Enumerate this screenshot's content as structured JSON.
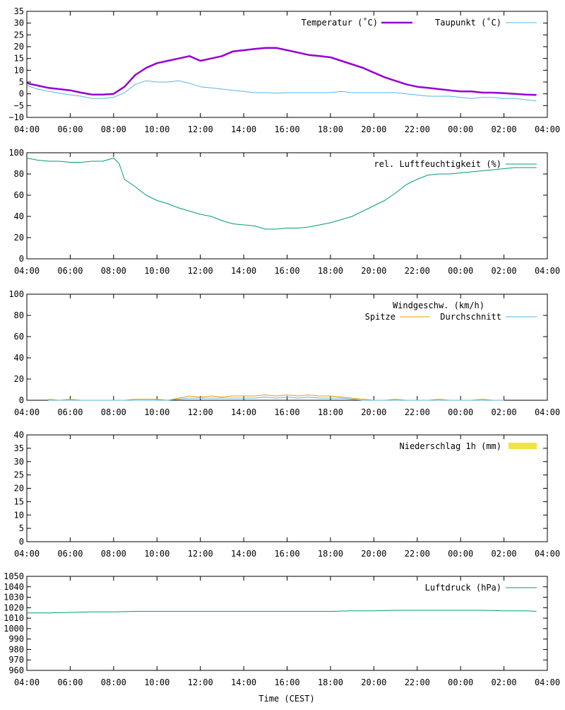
{
  "x_axis_title": "Time (CEST)",
  "chart_data": [
    {
      "type": "line",
      "title": "",
      "xlabel": "",
      "ylabel": "",
      "x_tick_labels": [
        "04:00",
        "06:00",
        "08:00",
        "10:00",
        "12:00",
        "14:00",
        "16:00",
        "18:00",
        "20:00",
        "22:00",
        "00:00",
        "02:00",
        "04:00"
      ],
      "xlim": [
        0,
        24
      ],
      "ylim": [
        -10,
        35
      ],
      "y_ticks": [
        -10,
        -5,
        0,
        5,
        10,
        15,
        20,
        25,
        30,
        35
      ],
      "y_tick_labels": [
        "−10",
        "−5",
        "0",
        "5",
        "10",
        "15",
        "20",
        "25",
        "30",
        "35"
      ],
      "grid": false,
      "legend": "top-right",
      "x": [
        0,
        0.5,
        1,
        1.5,
        2,
        2.5,
        3,
        3.5,
        4,
        4.5,
        5,
        5.5,
        6,
        6.5,
        7,
        7.5,
        8,
        8.5,
        9,
        9.5,
        10,
        10.5,
        11,
        11.5,
        12,
        12.5,
        13,
        13.5,
        14,
        14.5,
        15,
        15.5,
        16,
        16.5,
        17,
        17.5,
        18,
        18.5,
        19,
        19.5,
        20,
        20.5,
        21,
        21.5,
        22,
        22.5,
        23,
        23.5
      ],
      "series": [
        {
          "name": "Temperatur (˚C)",
          "color": "#9400d3",
          "width": 2.5,
          "values": [
            4.5,
            3.5,
            2.5,
            2,
            1.5,
            0.5,
            -0.3,
            -0.3,
            0,
            3,
            8,
            11,
            13,
            14,
            15,
            16,
            14,
            15,
            16,
            18,
            18.5,
            19,
            19.5,
            19.5,
            18.5,
            17.5,
            16.5,
            16,
            15.5,
            14,
            12.5,
            11,
            9,
            7,
            5.5,
            4,
            3,
            2.5,
            2,
            1.5,
            1,
            1,
            0.5,
            0.5,
            0.3,
            0,
            -0.3,
            -0.5
          ]
        },
        {
          "name": "Taupunkt (˚C)",
          "color": "#56b4e9",
          "width": 1,
          "values": [
            3.5,
            2,
            1,
            0.3,
            -0.5,
            -1,
            -2,
            -2,
            -1.5,
            0.5,
            4,
            5.5,
            5,
            5,
            5.5,
            4.5,
            3,
            2.5,
            2,
            1.5,
            1,
            0.5,
            0.5,
            0.3,
            0.5,
            0.5,
            0.5,
            0.5,
            0.5,
            1,
            0.5,
            0.5,
            0.5,
            0.5,
            0.5,
            0,
            -0.5,
            -1,
            -1,
            -1,
            -1.5,
            -2,
            -1.5,
            -1.5,
            -2,
            -2,
            -2.5,
            -3
          ]
        }
      ]
    },
    {
      "type": "line",
      "title": "",
      "xlabel": "",
      "ylabel": "",
      "x_tick_labels": [
        "04:00",
        "06:00",
        "08:00",
        "10:00",
        "12:00",
        "14:00",
        "16:00",
        "18:00",
        "20:00",
        "22:00",
        "00:00",
        "02:00",
        "04:00"
      ],
      "xlim": [
        0,
        24
      ],
      "ylim": [
        0,
        100
      ],
      "y_ticks": [
        0,
        20,
        40,
        60,
        80,
        100
      ],
      "y_tick_labels": [
        "0",
        "20",
        "40",
        "60",
        "80",
        "100"
      ],
      "grid": false,
      "legend": "top-right",
      "x": [
        0,
        0.5,
        1,
        1.5,
        2,
        2.5,
        3,
        3.5,
        4,
        4.25,
        4.5,
        5,
        5.5,
        6,
        6.5,
        7,
        7.5,
        8,
        8.5,
        9,
        9.5,
        10,
        10.5,
        11,
        11.5,
        12,
        12.5,
        13,
        13.5,
        14,
        14.5,
        15,
        15.5,
        16,
        16.5,
        17,
        17.5,
        18,
        18.5,
        19,
        19.5,
        20,
        20.5,
        21,
        21.5,
        22,
        22.5,
        23,
        23.5
      ],
      "series": [
        {
          "name": "rel. Luftfeuchtigkeit (%)",
          "color": "#009e73",
          "width": 1,
          "values": [
            95,
            93,
            92,
            92,
            91,
            91,
            92,
            92,
            95,
            90,
            75,
            68,
            60,
            55,
            52,
            48,
            45,
            42,
            40,
            36,
            33,
            32,
            31,
            28,
            28,
            29,
            29,
            30,
            32,
            34,
            37,
            40,
            45,
            50,
            55,
            62,
            70,
            75,
            79,
            80,
            80,
            81,
            82,
            83,
            84,
            85,
            86,
            86,
            86
          ]
        }
      ]
    },
    {
      "type": "line",
      "title": "",
      "xlabel": "",
      "ylabel": "",
      "x_tick_labels": [
        "04:00",
        "06:00",
        "08:00",
        "10:00",
        "12:00",
        "14:00",
        "16:00",
        "18:00",
        "20:00",
        "22:00",
        "00:00",
        "02:00",
        "04:00"
      ],
      "xlim": [
        0,
        24
      ],
      "ylim": [
        0,
        100
      ],
      "y_ticks": [
        0,
        20,
        40,
        60,
        80,
        100
      ],
      "y_tick_labels": [
        "0",
        "20",
        "40",
        "60",
        "80",
        "100"
      ],
      "grid": false,
      "legend": "top-right",
      "legend_title": "Windgeschw. (km/h)",
      "x": [
        1,
        1.5,
        2,
        2.5,
        3,
        3.5,
        4,
        4.5,
        5,
        5.5,
        6,
        6.5,
        7,
        7.5,
        8,
        8.5,
        9,
        9.5,
        10,
        10.5,
        11,
        11.5,
        12,
        12.5,
        13,
        13.5,
        14,
        14.5,
        15,
        15.5,
        16,
        16.5,
        17,
        17.5,
        18,
        18.5,
        19,
        19.5,
        20,
        20.5,
        21,
        21.5,
        22
      ],
      "series": [
        {
          "name": "Spitze",
          "color": "#e69f00",
          "width": 1,
          "values": [
            1,
            0,
            1,
            0,
            0,
            0,
            0,
            0,
            1,
            1,
            1,
            0,
            2,
            4,
            3,
            4,
            3,
            4,
            4,
            4,
            5,
            4,
            5,
            4,
            5,
            4,
            4,
            3,
            2,
            1,
            0,
            0,
            1,
            0,
            0,
            0,
            1,
            0,
            0,
            0,
            1,
            0,
            0
          ]
        },
        {
          "name": "Durchschnitt",
          "color": "#56b4e9",
          "width": 1,
          "values": [
            0,
            0,
            0,
            0,
            0,
            0,
            0,
            0,
            0,
            0,
            0,
            0,
            1,
            2,
            2,
            2,
            2,
            2,
            2,
            2,
            3,
            2,
            3,
            2,
            3,
            2,
            2,
            2,
            1,
            0,
            0,
            0,
            0,
            0,
            0,
            0,
            0,
            0,
            0,
            0,
            0,
            0,
            0
          ]
        }
      ]
    },
    {
      "type": "bar",
      "title": "",
      "xlabel": "",
      "ylabel": "",
      "x_tick_labels": [
        "04:00",
        "06:00",
        "08:00",
        "10:00",
        "12:00",
        "14:00",
        "16:00",
        "18:00",
        "20:00",
        "22:00",
        "00:00",
        "02:00",
        "04:00"
      ],
      "xlim": [
        0,
        24
      ],
      "ylim": [
        0,
        40
      ],
      "y_ticks": [
        0,
        5,
        10,
        15,
        20,
        25,
        30,
        35,
        40
      ],
      "y_tick_labels": [
        "0",
        "5",
        "10",
        "15",
        "20",
        "25",
        "30",
        "35",
        "40"
      ],
      "grid": false,
      "legend": "top-right",
      "x": [],
      "series": [
        {
          "name": "Niederschlag 1h (mm)",
          "color": "#f0e442",
          "values": []
        }
      ]
    },
    {
      "type": "line",
      "title": "",
      "xlabel": "",
      "ylabel": "",
      "x_tick_labels": [
        "04:00",
        "06:00",
        "08:00",
        "10:00",
        "12:00",
        "14:00",
        "16:00",
        "18:00",
        "20:00",
        "22:00",
        "00:00",
        "02:00",
        "04:00"
      ],
      "xlim": [
        0,
        24
      ],
      "ylim": [
        960,
        1050
      ],
      "y_ticks": [
        960,
        970,
        980,
        990,
        1000,
        1010,
        1020,
        1030,
        1040,
        1050
      ],
      "y_tick_labels": [
        "960",
        "970",
        "980",
        "990",
        "1000",
        "1010",
        "1020",
        "1030",
        "1040",
        "1050"
      ],
      "grid": false,
      "legend": "top-right",
      "x": [
        0,
        1,
        2,
        3,
        4,
        5,
        6,
        7,
        8,
        9,
        10,
        11,
        12,
        13,
        14,
        15,
        16,
        17,
        18,
        19,
        20,
        21,
        22,
        23,
        23.5
      ],
      "series": [
        {
          "name": "Luftdruck (hPa)",
          "color": "#009e73",
          "width": 1,
          "values": [
            1015,
            1015,
            1015.5,
            1016,
            1016,
            1016.5,
            1016.5,
            1016.5,
            1016.5,
            1016.5,
            1016.5,
            1016.5,
            1016.5,
            1016.5,
            1016.5,
            1017,
            1017,
            1017.5,
            1017.5,
            1017.5,
            1017.5,
            1017.5,
            1017,
            1017,
            1016.5
          ]
        }
      ]
    }
  ]
}
